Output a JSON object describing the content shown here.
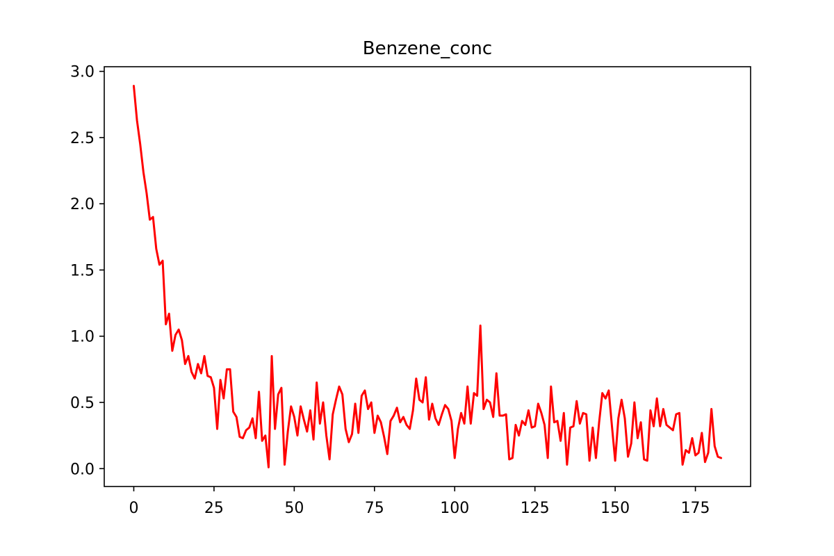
{
  "chart_data": {
    "type": "line",
    "title": "Benzene_conc",
    "xlabel": "",
    "ylabel": "",
    "xlim": [
      -9.2,
      192.2
    ],
    "ylim": [
      -0.135,
      3.035
    ],
    "xticks": [
      0,
      25,
      50,
      75,
      100,
      125,
      150,
      175
    ],
    "xtick_labels": [
      "0",
      "25",
      "50",
      "75",
      "100",
      "125",
      "150",
      "175"
    ],
    "yticks": [
      0.0,
      0.5,
      1.0,
      1.5,
      2.0,
      2.5,
      3.0
    ],
    "ytick_labels": [
      "0.0",
      "0.5",
      "1.0",
      "1.5",
      "2.0",
      "2.5",
      "3.0"
    ],
    "grid": false,
    "legend": "none",
    "series": [
      {
        "color": "#ff0000",
        "x_start": 0,
        "x_step": 1,
        "values": [
          2.89,
          2.63,
          2.45,
          2.24,
          2.08,
          1.88,
          1.9,
          1.66,
          1.54,
          1.57,
          1.09,
          1.17,
          0.89,
          1.01,
          1.05,
          0.97,
          0.79,
          0.85,
          0.73,
          0.68,
          0.79,
          0.72,
          0.85,
          0.7,
          0.69,
          0.61,
          0.3,
          0.67,
          0.53,
          0.75,
          0.75,
          0.43,
          0.39,
          0.24,
          0.23,
          0.29,
          0.31,
          0.38,
          0.23,
          0.58,
          0.21,
          0.25,
          0.01,
          0.85,
          0.3,
          0.56,
          0.61,
          0.03,
          0.28,
          0.47,
          0.39,
          0.25,
          0.47,
          0.37,
          0.28,
          0.44,
          0.22,
          0.65,
          0.34,
          0.5,
          0.25,
          0.07,
          0.41,
          0.52,
          0.62,
          0.56,
          0.3,
          0.2,
          0.26,
          0.49,
          0.27,
          0.55,
          0.59,
          0.45,
          0.5,
          0.27,
          0.4,
          0.35,
          0.24,
          0.11,
          0.36,
          0.4,
          0.46,
          0.35,
          0.39,
          0.33,
          0.3,
          0.44,
          0.68,
          0.52,
          0.5,
          0.69,
          0.37,
          0.49,
          0.38,
          0.33,
          0.41,
          0.48,
          0.45,
          0.36,
          0.08,
          0.3,
          0.42,
          0.34,
          0.62,
          0.34,
          0.57,
          0.55,
          1.08,
          0.45,
          0.52,
          0.5,
          0.39,
          0.72,
          0.4,
          0.4,
          0.41,
          0.07,
          0.08,
          0.33,
          0.25,
          0.36,
          0.33,
          0.44,
          0.31,
          0.32,
          0.49,
          0.42,
          0.33,
          0.08,
          0.62,
          0.35,
          0.36,
          0.21,
          0.42,
          0.03,
          0.31,
          0.32,
          0.51,
          0.34,
          0.42,
          0.41,
          0.06,
          0.31,
          0.08,
          0.35,
          0.57,
          0.53,
          0.59,
          0.32,
          0.06,
          0.38,
          0.52,
          0.38,
          0.09,
          0.19,
          0.5,
          0.23,
          0.35,
          0.07,
          0.06,
          0.44,
          0.32,
          0.53,
          0.32,
          0.45,
          0.33,
          0.31,
          0.29,
          0.41,
          0.42,
          0.03,
          0.14,
          0.12,
          0.23,
          0.1,
          0.12,
          0.27,
          0.05,
          0.12,
          0.45,
          0.17,
          0.09,
          0.08
        ]
      }
    ]
  }
}
